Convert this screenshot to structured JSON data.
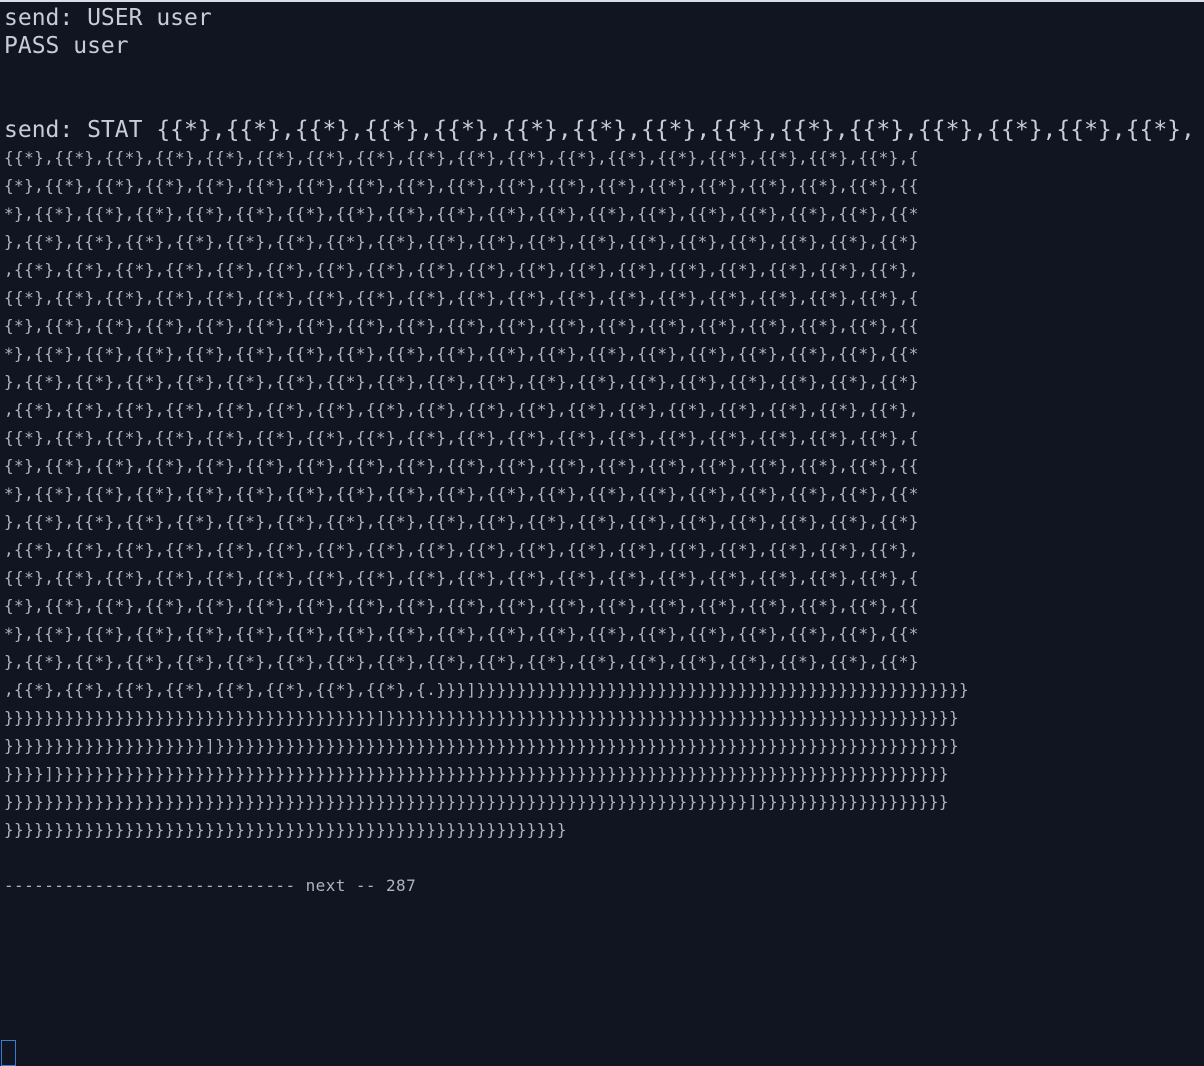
{
  "terminal": {
    "lines": [
      "send: USER user",
      "PASS user",
      "",
      "",
      "send: STAT {{*},{{*},{{*},{{*},{{*},{{*},{{*},{{*},{{*},{{*},{{*},{{*},{{*},{{*},{{*},",
      "{{*},{{*},{{*},{{*},{{*},{{*},{{*},{{*},{{*},{{*},{{*},{{*},{{*},{{*},{{*},{{*},{{*},{{*},{",
      "{*},{{*},{{*},{{*},{{*},{{*},{{*},{{*},{{*},{{*},{{*},{{*},{{*},{{*},{{*},{{*},{{*},{{*},{{",
      "*},{{*},{{*},{{*},{{*},{{*},{{*},{{*},{{*},{{*},{{*},{{*},{{*},{{*},{{*},{{*},{{*},{{*},{{*",
      "},{{*},{{*},{{*},{{*},{{*},{{*},{{*},{{*},{{*},{{*},{{*},{{*},{{*},{{*},{{*},{{*},{{*},{{*}",
      ",{{*},{{*},{{*},{{*},{{*},{{*},{{*},{{*},{{*},{{*},{{*},{{*},{{*},{{*},{{*},{{*},{{*},{{*},",
      "{{*},{{*},{{*},{{*},{{*},{{*},{{*},{{*},{{*},{{*},{{*},{{*},{{*},{{*},{{*},{{*},{{*},{{*},{",
      "{*},{{*},{{*},{{*},{{*},{{*},{{*},{{*},{{*},{{*},{{*},{{*},{{*},{{*},{{*},{{*},{{*},{{*},{{",
      "*},{{*},{{*},{{*},{{*},{{*},{{*},{{*},{{*},{{*},{{*},{{*},{{*},{{*},{{*},{{*},{{*},{{*},{{*",
      "},{{*},{{*},{{*},{{*},{{*},{{*},{{*},{{*},{{*},{{*},{{*},{{*},{{*},{{*},{{*},{{*},{{*},{{*}",
      ",{{*},{{*},{{*},{{*},{{*},{{*},{{*},{{*},{{*},{{*},{{*},{{*},{{*},{{*},{{*},{{*},{{*},{{*},",
      "{{*},{{*},{{*},{{*},{{*},{{*},{{*},{{*},{{*},{{*},{{*},{{*},{{*},{{*},{{*},{{*},{{*},{{*},{",
      "{*},{{*},{{*},{{*},{{*},{{*},{{*},{{*},{{*},{{*},{{*},{{*},{{*},{{*},{{*},{{*},{{*},{{*},{{",
      "*},{{*},{{*},{{*},{{*},{{*},{{*},{{*},{{*},{{*},{{*},{{*},{{*},{{*},{{*},{{*},{{*},{{*},{{*",
      "},{{*},{{*},{{*},{{*},{{*},{{*},{{*},{{*},{{*},{{*},{{*},{{*},{{*},{{*},{{*},{{*},{{*},{{*}",
      ",{{*},{{*},{{*},{{*},{{*},{{*},{{*},{{*},{{*},{{*},{{*},{{*},{{*},{{*},{{*},{{*},{{*},{{*},",
      "{{*},{{*},{{*},{{*},{{*},{{*},{{*},{{*},{{*},{{*},{{*},{{*},{{*},{{*},{{*},{{*},{{*},{{*},{",
      "{*},{{*},{{*},{{*},{{*},{{*},{{*},{{*},{{*},{{*},{{*},{{*},{{*},{{*},{{*},{{*},{{*},{{*},{{",
      "*},{{*},{{*},{{*},{{*},{{*},{{*},{{*},{{*},{{*},{{*},{{*},{{*},{{*},{{*},{{*},{{*},{{*},{{*",
      "},{{*},{{*},{{*},{{*},{{*},{{*},{{*},{{*},{{*},{{*},{{*},{{*},{{*},{{*},{{*},{{*},{{*},{{*}",
      ",{{*},{{*},{{*},{{*},{{*},{{*},{{*},{{*},{.}}}]}}}}}}}}}}}}}}}}}}}}}}}}}}}}}}}}}}}}}}}}}}}}}}}}}",
      "}}}}}}}}}}}}}}}}}}}}}}}}}}}}}}}}}}}}}]}}}}}}}}}}}}}}}}}}}}}}}}}}}}}}}}}}}}}}}}}}}}}}}}}}}}}}}}}",
      "}}}}}}}}}}}}}}}}}}}}]}}}}}}}}}}}}}}}}}}}}}}}}}}}}}}}}}}}}}}}}}}}}}}}}}}}}}}}}}}}}}}}}}}}}}}}}}}",
      "}}}}]}}}}}}}}}}}}}}}}}}}}}}}}}}}}}}}}}}}}}}}}}}}}}}}}}}}}}}}}}}}}}}}}}}}}}}}}}}}}}}}}}}}}}}}}}",
      "}}}}}}}}}}}}}}}}}}}}}}}}}}}}}}}}}}}}}}}}}}}}}}}}}}}}}}}}}}}}}}}}}}}}}}}}}}]}}}}}}}}}}}}}}}}}}}",
      "}}}}}}}}}}}}}}}}}}}}}}}}}}}}}}}}}}}}}}}}}}}}}}}}}}}}}}}}",
      "",
      "----------------------------- next -- 287"
    ]
  }
}
